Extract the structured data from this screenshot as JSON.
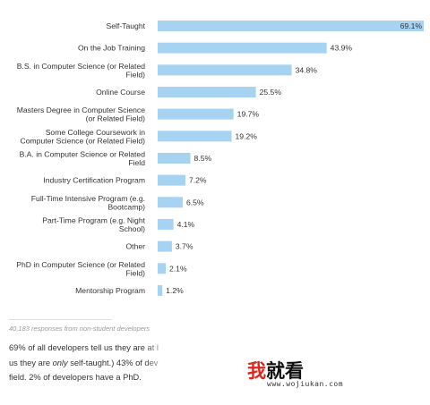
{
  "chart_data": {
    "type": "bar",
    "orientation": "horizontal",
    "categories": [
      [
        "Self-Taught"
      ],
      [
        "On the Job Training"
      ],
      [
        "B.S. in Computer Science (or Related",
        "Field)"
      ],
      [
        "Online Course"
      ],
      [
        "Masters Degree in Computer Science",
        "(or Related Field)"
      ],
      [
        "Some College Coursework in",
        "Computer Science (or Related Field)"
      ],
      [
        "B.A. in Computer Science or Related",
        "Field"
      ],
      [
        "Industry Certification Program"
      ],
      [
        "Full-Time Intensive Program (e.g.",
        "Bootcamp)"
      ],
      [
        "Part-Time Program (e.g. Night",
        "School)"
      ],
      [
        "Other"
      ],
      [
        "PhD in Computer Science (or Related",
        "Field)"
      ],
      [
        "Mentorship Program"
      ]
    ],
    "values": [
      69.1,
      43.9,
      34.8,
      25.5,
      19.7,
      19.2,
      8.5,
      7.2,
      6.5,
      4.1,
      3.7,
      2.1,
      1.2
    ],
    "value_labels": [
      "69.1%",
      "43.9%",
      "34.8%",
      "25.5%",
      "19.7%",
      "19.2%",
      "8.5%",
      "7.2%",
      "6.5%",
      "4.1%",
      "3.7%",
      "2.1%",
      "1.2%"
    ],
    "xlim": [
      0,
      69.1
    ],
    "grid": false,
    "bar_color": "#a6d3f2"
  },
  "footnote": "40,183 responses from non-student developers",
  "paragraph": {
    "line1": "69% of all developers tell us they are at l",
    "line2_pre": "us they are ",
    "line2_em": "only",
    "line2_post": " self-taught.) 43% of dev",
    "line3": "field. 2% of developers have a PhD."
  },
  "watermark": {
    "text_red": "我",
    "text_black": "就看",
    "url": "www.wojiukan.com",
    "color_red": "#e0261b"
  }
}
